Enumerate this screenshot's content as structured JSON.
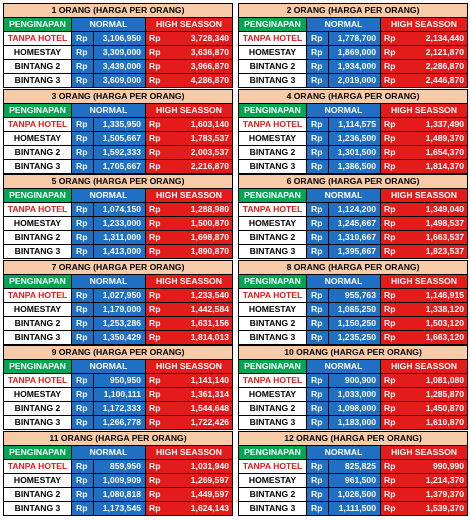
{
  "headers": {
    "col1": "PENGINAPAN",
    "col2": "NORMAL",
    "col3": "HIGH SEASSON",
    "currency": "Rp"
  },
  "blocks": [
    {
      "title": "1 ORANG (HARGA PER ORANG)",
      "rows": [
        {
          "label": "TANPA HOTEL",
          "normal": "3,106,950",
          "high": "3,728,340"
        },
        {
          "label": "HOMESTAY",
          "normal": "3,309,000",
          "high": "3,636,870"
        },
        {
          "label": "BINTANG 2",
          "normal": "3,439,000",
          "high": "3,966,870"
        },
        {
          "label": "BINTANG 3",
          "normal": "3,609,000",
          "high": "4,286,870"
        }
      ]
    },
    {
      "title": "2 ORANG (HARGA PER ORANG)",
      "rows": [
        {
          "label": "TANPA HOTEL",
          "normal": "1,778,700",
          "high": "2,134,440"
        },
        {
          "label": "HOMESTAY",
          "normal": "1,869,000",
          "high": "2,121,870"
        },
        {
          "label": "BINTANG 2",
          "normal": "1,934,000",
          "high": "2,286,870"
        },
        {
          "label": "BINTANG 3",
          "normal": "2,019,000",
          "high": "2,446,870"
        }
      ]
    },
    {
      "title": "3 ORANG (HARGA PER ORANG)",
      "rows": [
        {
          "label": "TANPA HOTEL",
          "normal": "1,335,950",
          "high": "1,603,140"
        },
        {
          "label": "HOMESTAY",
          "normal": "1,505,667",
          "high": "1,783,537"
        },
        {
          "label": "BINTANG 2",
          "normal": "1,592,333",
          "high": "2,003,537"
        },
        {
          "label": "BINTANG 3",
          "normal": "1,705,667",
          "high": "2,216,870"
        }
      ]
    },
    {
      "title": "4 ORANG (HARGA PER ORANG)",
      "rows": [
        {
          "label": "TANPA HOTEL",
          "normal": "1,114,575",
          "high": "1,337,490"
        },
        {
          "label": "HOMESTAY",
          "normal": "1,236,500",
          "high": "1,489,370"
        },
        {
          "label": "BINTANG 2",
          "normal": "1,301,500",
          "high": "1,654,370"
        },
        {
          "label": "BINTANG 3",
          "normal": "1,386,500",
          "high": "1,814,370"
        }
      ]
    },
    {
      "title": "5 ORANG (HARGA PER ORANG)",
      "rows": [
        {
          "label": "TANPA HOTEL",
          "normal": "1,074,150",
          "high": "1,288,980"
        },
        {
          "label": "HOMESTAY",
          "normal": "1,233,000",
          "high": "1,500,870"
        },
        {
          "label": "BINTANG 2",
          "normal": "1,311,000",
          "high": "1,698,870"
        },
        {
          "label": "BINTANG 3",
          "normal": "1,413,000",
          "high": "1,890,870"
        }
      ]
    },
    {
      "title": "6 ORANG (HARGA PER ORANG)",
      "rows": [
        {
          "label": "TANPA HOTEL",
          "normal": "1,124,200",
          "high": "1,349,040"
        },
        {
          "label": "HOMESTAY",
          "normal": "1,245,667",
          "high": "1,498,537"
        },
        {
          "label": "BINTANG 2",
          "normal": "1,310,667",
          "high": "1,663,537"
        },
        {
          "label": "BINTANG 3",
          "normal": "1,395,667",
          "high": "1,823,537"
        }
      ]
    },
    {
      "title": "7 ORANG (HARGA PER ORANG)",
      "rows": [
        {
          "label": "TANPA HOTEL",
          "normal": "1,027,950",
          "high": "1,233,540"
        },
        {
          "label": "HOMESTAY",
          "normal": "1,179,000",
          "high": "1,442,584"
        },
        {
          "label": "BINTANG 2",
          "normal": "1,253,286",
          "high": "1,631,156"
        },
        {
          "label": "BINTANG 3",
          "normal": "1,350,429",
          "high": "1,814,013"
        }
      ]
    },
    {
      "title": "8 ORANG (HARGA PER ORANG)",
      "rows": [
        {
          "label": "TANPA HOTEL",
          "normal": "955,763",
          "high": "1,146,915"
        },
        {
          "label": "HOMESTAY",
          "normal": "1,085,250",
          "high": "1,338,120"
        },
        {
          "label": "BINTANG 2",
          "normal": "1,150,250",
          "high": "1,503,120"
        },
        {
          "label": "BINTANG 3",
          "normal": "1,235,250",
          "high": "1,663,120"
        }
      ]
    },
    {
      "title": "9 ORANG (HARGA PER ORANG)",
      "rows": [
        {
          "label": "TANPA HOTEL",
          "normal": "950,950",
          "high": "1,141,140"
        },
        {
          "label": "HOMESTAY",
          "normal": "1,100,111",
          "high": "1,361,314"
        },
        {
          "label": "BINTANG 2",
          "normal": "1,172,333",
          "high": "1,544,648"
        },
        {
          "label": "BINTANG 3",
          "normal": "1,266,778",
          "high": "1,722,426"
        }
      ]
    },
    {
      "title": "10 ORANG (HARGA PER ORANG)",
      "rows": [
        {
          "label": "TANPA HOTEL",
          "normal": "900,900",
          "high": "1,081,080"
        },
        {
          "label": "HOMESTAY",
          "normal": "1,033,000",
          "high": "1,285,870"
        },
        {
          "label": "BINTANG 2",
          "normal": "1,098,000",
          "high": "1,450,870"
        },
        {
          "label": "BINTANG 3",
          "normal": "1,183,000",
          "high": "1,610,870"
        }
      ]
    },
    {
      "title": "11 ORANG (HARGA PER ORANG)",
      "rows": [
        {
          "label": "TANPA HOTEL",
          "normal": "859,950",
          "high": "1,031,940"
        },
        {
          "label": "HOMESTAY",
          "normal": "1,009,909",
          "high": "1,269,597"
        },
        {
          "label": "BINTANG 2",
          "normal": "1,080,818",
          "high": "1,449,597"
        },
        {
          "label": "BINTANG 3",
          "normal": "1,173,545",
          "high": "1,624,143"
        }
      ]
    },
    {
      "title": "12 ORANG (HARGA PER ORANG)",
      "rows": [
        {
          "label": "TANPA HOTEL",
          "normal": "825,825",
          "high": "990,990"
        },
        {
          "label": "HOMESTAY",
          "normal": "961,500",
          "high": "1,214,370"
        },
        {
          "label": "BINTANG 2",
          "normal": "1,026,500",
          "high": "1,379,370"
        },
        {
          "label": "BINTANG 3",
          "normal": "1,111,500",
          "high": "1,539,370"
        }
      ]
    }
  ]
}
